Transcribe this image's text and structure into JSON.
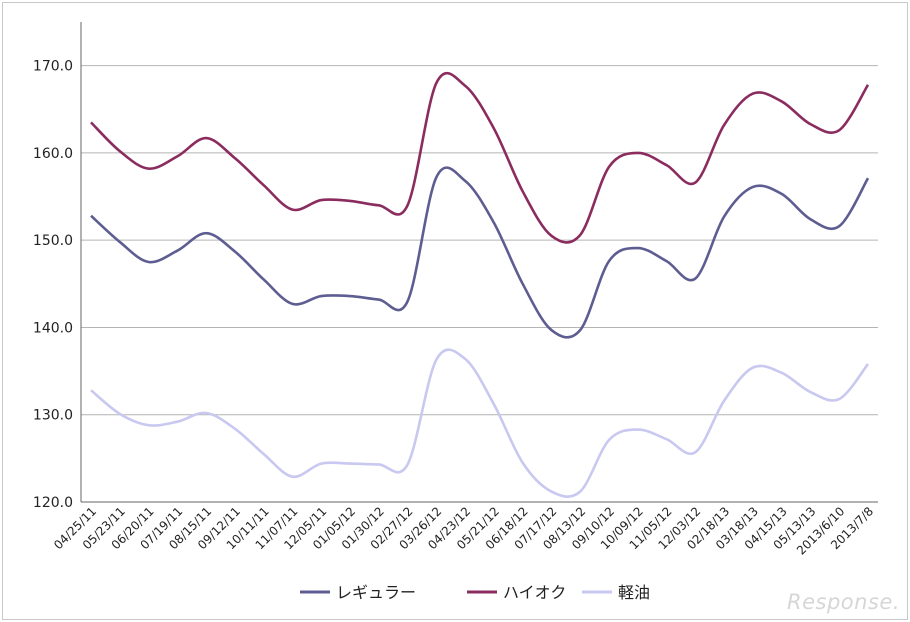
{
  "chart_data": {
    "type": "line",
    "title": "",
    "xlabel": "",
    "ylabel": "",
    "ylim": [
      120,
      175
    ],
    "yticks": [
      120,
      130,
      140,
      150,
      160,
      170
    ],
    "ytick_labels": [
      "120.0",
      "130.0",
      "140.0",
      "150.0",
      "160.0",
      "170.0"
    ],
    "grid": true,
    "legend_position": "bottom",
    "categories": [
      "04/25/11",
      "05/23/11",
      "06/20/11",
      "07/19/11",
      "08/15/11",
      "09/12/11",
      "10/11/11",
      "11/07/11",
      "12/05/11",
      "01/05/12",
      "01/30/12",
      "02/27/12",
      "03/26/12",
      "04/23/12",
      "05/21/12",
      "06/18/12",
      "07/17/12",
      "08/13/12",
      "09/10/12",
      "10/09/12",
      "11/05/12",
      "12/03/12",
      "02/18/13",
      "03/18/13",
      "04/15/13",
      "05/13/13",
      "2013/6/10",
      "2013/7/8"
    ],
    "series": [
      {
        "name": "レギュラー",
        "color": "#5d5d92",
        "values": [
          152.8,
          149.8,
          147.5,
          148.8,
          150.8,
          148.7,
          145.5,
          142.7,
          143.6,
          143.6,
          143.2,
          143.0,
          157.2,
          156.8,
          152.0,
          145.0,
          139.7,
          139.7,
          147.6,
          149.1,
          147.6,
          145.6,
          152.7,
          156.1,
          155.3,
          152.4,
          151.6,
          157.1
        ]
      },
      {
        "name": "ハイオク",
        "color": "#8b2c5f",
        "values": [
          163.5,
          160.2,
          158.2,
          159.6,
          161.7,
          159.4,
          156.3,
          153.5,
          154.6,
          154.5,
          154.0,
          154.0,
          168.0,
          167.7,
          162.8,
          155.6,
          150.5,
          150.6,
          158.4,
          160.0,
          158.6,
          156.6,
          163.2,
          166.8,
          165.9,
          163.3,
          162.6,
          167.8
        ]
      },
      {
        "name": "軽油",
        "color": "#c8c8f0",
        "values": [
          132.8,
          130.1,
          128.8,
          129.2,
          130.2,
          128.4,
          125.5,
          122.9,
          124.4,
          124.4,
          124.3,
          124.3,
          136.3,
          136.4,
          131.2,
          124.5,
          121.2,
          121.2,
          127.1,
          128.3,
          127.2,
          125.7,
          131.6,
          135.4,
          134.8,
          132.6,
          131.8,
          135.8
        ]
      }
    ]
  },
  "watermark": "Response."
}
